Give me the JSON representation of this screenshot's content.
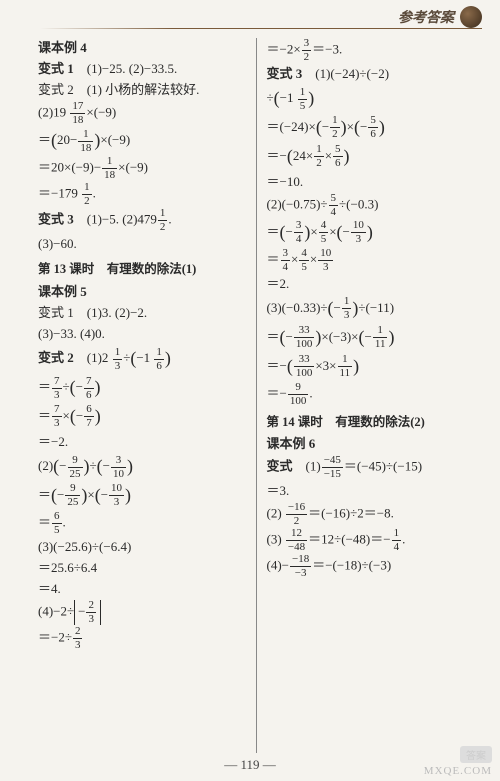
{
  "header": {
    "title": "参考答案"
  },
  "pagenum": "— 119 —",
  "watermark": {
    "top": "答案",
    "bottom": "MXQE.COM"
  },
  "left": {
    "kblA": "课本例 4",
    "bs1": "变式 1　(1)−25. (2)−33.5.",
    "bs2": "变式 2　(1) 小杨的解法较好.",
    "l1a": "(2)19 ",
    "l1_num": "17",
    "l1_den": "18",
    "l1b": "×(−9)",
    "l2a": "＝",
    "l2b": "20−",
    "l2_num": "1",
    "l2_den": "18",
    "l2c": "×(−9)",
    "l3a": "＝20×(−9)−",
    "l3_num": "1",
    "l3_den": "18",
    "l3b": "×(−9)",
    "l4a": "＝−179 ",
    "l4_num": "1",
    "l4_den": "2",
    "l4b": ".",
    "bs3a": "变式 3　(1)−5. (2)479",
    "bs3_num": "1",
    "bs3_den": "2",
    "bs3b": ".",
    "bs3c": "(3)−60.",
    "lesson13": "第 13 课时　有理数的除法(1)",
    "kblB": "课本例 5",
    "b1": "变式 1　(1)3. (2)−2.",
    "b1b": "(3)−33. (4)0.",
    "b2a": "变式 2　(1)2 ",
    "b2_num1": "1",
    "b2_den1": "3",
    "b2b": "÷",
    "b2c": "−1 ",
    "b2_num2": "1",
    "b2_den2": "6",
    "c1a": "＝",
    "c1_num1": "7",
    "c1_den1": "3",
    "c1b": "÷",
    "c1c": "−",
    "c1_num2": "7",
    "c1_den2": "6",
    "c2a": "＝",
    "c2_num1": "7",
    "c2_den1": "3",
    "c2b": "×",
    "c2c": "−",
    "c2_num2": "6",
    "c2_den2": "7",
    "c3": "＝−2.",
    "d1a": "(2)",
    "d1b": "−",
    "d1_num1": "9",
    "d1_den1": "25",
    "d1c": "÷",
    "d1d": "−",
    "d1_num2": "3",
    "d1_den2": "10",
    "d2a": "＝",
    "d2b": "−",
    "d2_num1": "9",
    "d2_den1": "25",
    "d2c": "×",
    "d2d": "−",
    "d2_num2": "10",
    "d2_den2": "3",
    "d3a": "＝",
    "d3_num": "6",
    "d3_den": "5",
    "d3b": ".",
    "e1": "(3)(−25.6)÷(−6.4)",
    "e2": "＝25.6÷6.4",
    "e3": "＝4.",
    "f1a": "(4)−2÷",
    "f1b": "−",
    "f1_num": "2",
    "f1_den": "3",
    "f2a": "＝−2÷",
    "f2_num": "2",
    "f2_den": "3"
  },
  "right": {
    "g1a": "＝−2×",
    "g1_num": "3",
    "g1_den": "2",
    "g1b": "＝−3.",
    "h1": "变式 3　(1)(−24)÷(−2)",
    "h2a": "÷",
    "h2b": "−1 ",
    "h2_num": "1",
    "h2_den": "5",
    "h3a": "＝(−24)×",
    "h3b": "−",
    "h3_num1": "1",
    "h3_den1": "2",
    "h3c": "×",
    "h3d": "−",
    "h3_num2": "5",
    "h3_den2": "6",
    "h4a": "＝−",
    "h4b": "24×",
    "h4_num1": "1",
    "h4_den1": "2",
    "h4c": "×",
    "h4_num2": "5",
    "h4_den2": "6",
    "h5": "＝−10.",
    "i1a": "(2)(−0.75)÷",
    "i1_num": "5",
    "i1_den": "4",
    "i1b": "÷(−0.3)",
    "i2a": "＝",
    "i2b": "−",
    "i2_num1": "3",
    "i2_den1": "4",
    "i2c": "×",
    "i2_num2": "4",
    "i2_den2": "5",
    "i2d": "×",
    "i2e": "−",
    "i2_num3": "10",
    "i2_den3": "3",
    "i3a": "＝",
    "i3_num1": "3",
    "i3_den1": "4",
    "i3b": "×",
    "i3_num2": "4",
    "i3_den2": "5",
    "i3c": "×",
    "i3_num3": "10",
    "i3_den3": "3",
    "i4": "＝2.",
    "j1a": "(3)(−0.33)÷",
    "j1b": "−",
    "j1_num": "1",
    "j1_den": "3",
    "j1c": "÷(−11)",
    "j2a": "＝",
    "j2b": "−",
    "j2_num1": "33",
    "j2_den1": "100",
    "j2c": "×(−3)×",
    "j2d": "−",
    "j2_num2": "1",
    "j2_den2": "11",
    "j3a": "＝−",
    "j3_num1": "33",
    "j3_den1": "100",
    "j3b": "×3×",
    "j3_num2": "1",
    "j3_den2": "11",
    "j4a": "＝−",
    "j4_num": "9",
    "j4_den": "100",
    "j4b": ".",
    "lesson14": "第 14 课时　有理数的除法(2)",
    "kblC": "课本例 6",
    "k1a": "变式　(1)",
    "k1_num": "−45",
    "k1_den": "−15",
    "k1b": "＝(−45)÷(−15)",
    "k1c": "＝3.",
    "k2a": "(2) ",
    "k2_num": "−16",
    "k2_den": "2",
    "k2b": "＝(−16)÷2＝−8.",
    "k3a": "(3) ",
    "k3_num": "12",
    "k3_den": "−48",
    "k3b": "＝12÷(−48)＝−",
    "k3_num2": "1",
    "k3_den2": "4",
    "k3c": ".",
    "k4a": "(4)−",
    "k4_num": "−18",
    "k4_den": "−3",
    "k4b": "＝−(−18)÷(−3)"
  }
}
